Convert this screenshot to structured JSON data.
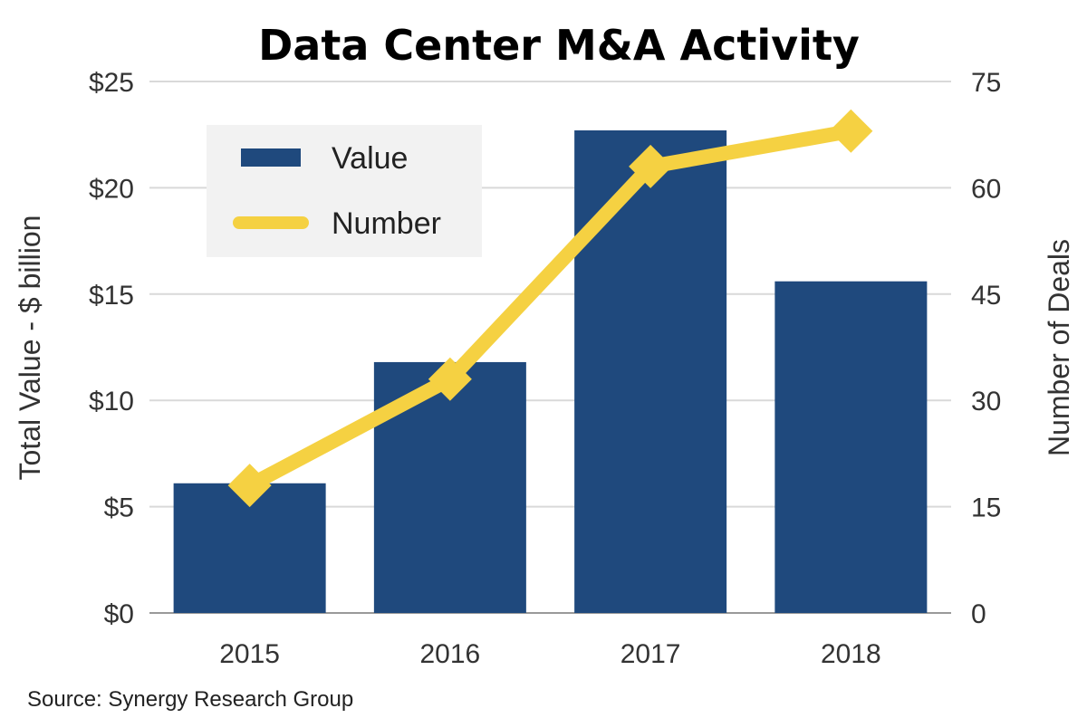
{
  "chart_data": {
    "type": "bar",
    "title": "Data Center M&A Activity",
    "categories": [
      "2015",
      "2016",
      "2017",
      "2018"
    ],
    "series": [
      {
        "name": "Value",
        "type": "bar",
        "axis": "left",
        "color": "#1f497d",
        "values": [
          6.1,
          11.8,
          22.7,
          15.6
        ]
      },
      {
        "name": "Number",
        "type": "line",
        "axis": "right",
        "color": "#f5d142",
        "marker": "diamond",
        "values": [
          18,
          33,
          63,
          68
        ]
      }
    ],
    "ylabel": "Total Value - $ billion",
    "y2label": "Number of Deals",
    "xlabel": "",
    "ylim": [
      0,
      25
    ],
    "y2lim": [
      0,
      75
    ],
    "yticks": [
      "$0",
      "$5",
      "$10",
      "$15",
      "$20",
      "$25"
    ],
    "y2ticks": [
      "0",
      "15",
      "30",
      "45",
      "60",
      "75"
    ],
    "grid": true,
    "legend_position": "top-left",
    "source": "Source: Synergy Research Group"
  }
}
